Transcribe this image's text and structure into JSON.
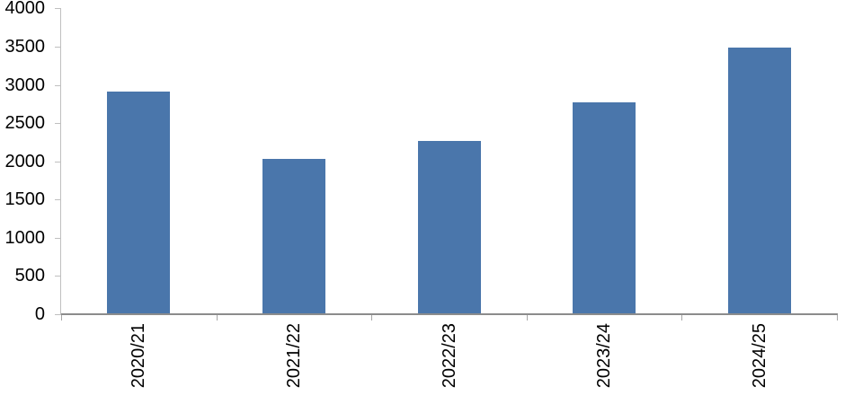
{
  "chart_data": {
    "type": "bar",
    "categories": [
      "2020/21",
      "2021/22",
      "2022/23",
      "2023/24",
      "2024/25"
    ],
    "values": [
      2910,
      2030,
      2265,
      2775,
      3485
    ],
    "title": "",
    "xlabel": "",
    "ylabel": "",
    "ylim": [
      0,
      4000
    ],
    "ytick_step": 500,
    "yticks": [
      0,
      500,
      1000,
      1500,
      2000,
      2500,
      3000,
      3500,
      4000
    ],
    "grid": false,
    "legend_position": "none",
    "bar_color": "#4A76AB",
    "x_axis_color": "#8C8C8C",
    "y_axis_color": "#BFBFBF",
    "x_tick_color": "#A6A6A6",
    "tick_label_color": "#000000"
  }
}
